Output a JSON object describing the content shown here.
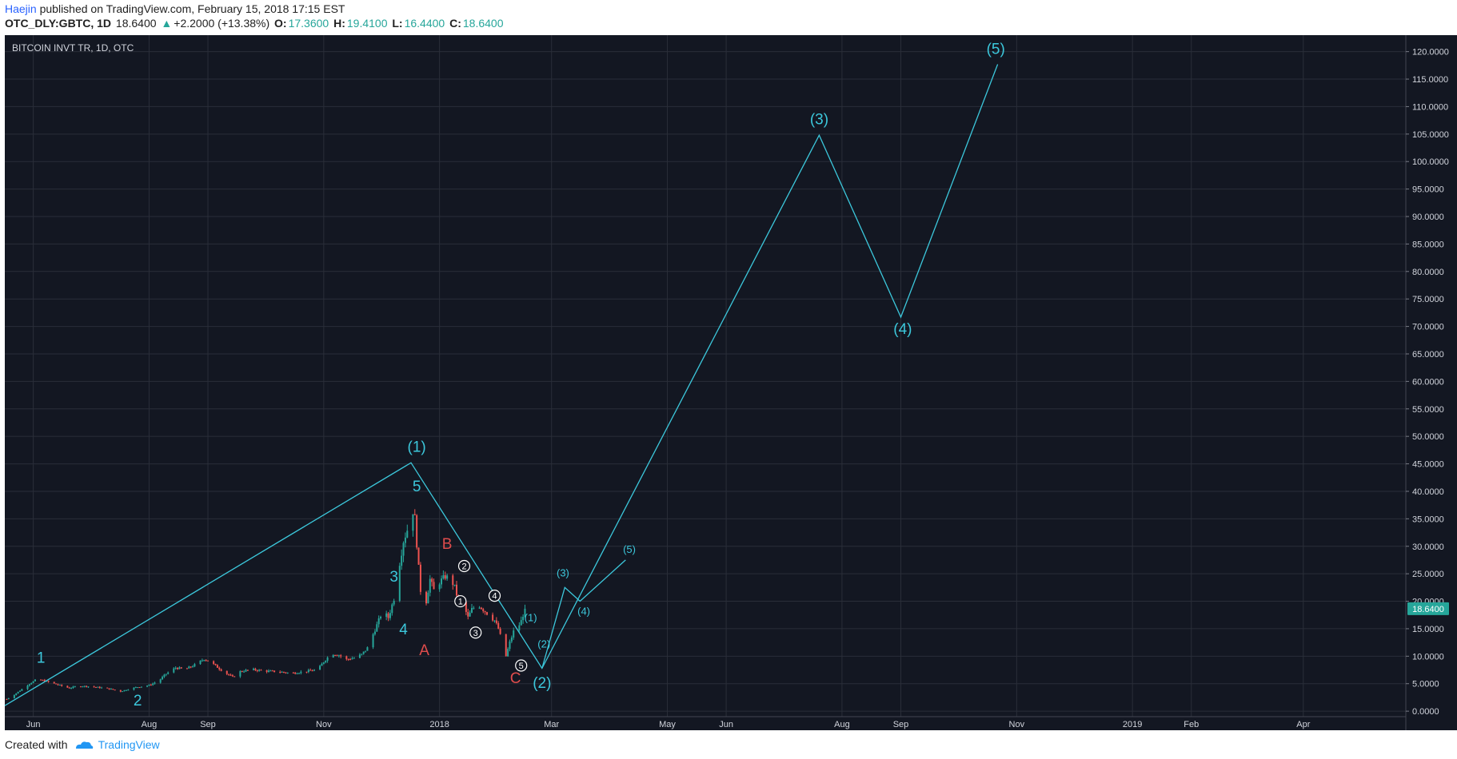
{
  "header": {
    "author": "Haejin",
    "published_text": "published on TradingView.com, February 15, 2018 17:15 EST"
  },
  "ohlc": {
    "symbol": "OTC_DLY:GBTC, 1D",
    "last": "18.6400",
    "arrow": "▲",
    "change": "+2.2000 (+13.38%)",
    "o_label": "O:",
    "o": "17.3600",
    "h_label": "H:",
    "h": "19.4100",
    "l_label": "L:",
    "l": "16.4400",
    "c_label": "C:",
    "c": "18.6400"
  },
  "legend_text": "BITCOIN INVT TR, 1D, OTC",
  "price_badge": "18.6400",
  "footer": {
    "created_with": "Created with",
    "brand": "TradingView"
  },
  "colors": {
    "background": "#131722",
    "grid": "#2a2e39",
    "wave": "#3cc8dc",
    "bull": "#26a69a",
    "bear": "#ef5350",
    "correction_label": "#e04c4c",
    "badge": "#26a69a"
  },
  "chart_data": {
    "type": "candlestick",
    "title": "BITCOIN INVT TR, 1D, OTC",
    "xlim": [
      "2017-05-17",
      "2019-05-25"
    ],
    "ylim": [
      -1,
      123
    ],
    "y_ticks": [
      "0.0000",
      "5.0000",
      "10.0000",
      "15.0000",
      "20.0000",
      "25.0000",
      "30.0000",
      "35.0000",
      "40.0000",
      "45.0000",
      "50.0000",
      "55.0000",
      "60.0000",
      "65.0000",
      "70.0000",
      "75.0000",
      "80.0000",
      "85.0000",
      "90.0000",
      "95.0000",
      "100.0000",
      "105.0000",
      "110.0000",
      "115.0000",
      "120.0000"
    ],
    "x_ticks": [
      {
        "label": "Jun",
        "date": "2017-06-01"
      },
      {
        "label": "Aug",
        "date": "2017-08-01"
      },
      {
        "label": "Sep",
        "date": "2017-09-01"
      },
      {
        "label": "Nov",
        "date": "2017-11-01"
      },
      {
        "label": "2018",
        "date": "2018-01-01"
      },
      {
        "label": "Mar",
        "date": "2018-03-01"
      },
      {
        "label": "May",
        "date": "2018-05-01"
      },
      {
        "label": "Jun",
        "date": "2018-06-01"
      },
      {
        "label": "Aug",
        "date": "2018-08-01"
      },
      {
        "label": "Sep",
        "date": "2018-09-01"
      },
      {
        "label": "Nov",
        "date": "2018-11-01"
      },
      {
        "label": "2019",
        "date": "2019-01-01"
      },
      {
        "label": "Feb",
        "date": "2019-02-01"
      },
      {
        "label": "Apr",
        "date": "2019-04-01"
      }
    ],
    "last_price": 18.64,
    "price_path": [
      [
        "2017-05-18",
        2.2
      ],
      [
        "2017-05-22",
        3.0
      ],
      [
        "2017-05-26",
        4.0
      ],
      [
        "2017-05-30",
        5.0
      ],
      [
        "2017-06-03",
        5.8
      ],
      [
        "2017-06-07",
        5.5
      ],
      [
        "2017-06-12",
        5.0
      ],
      [
        "2017-06-16",
        4.6
      ],
      [
        "2017-06-20",
        4.2
      ],
      [
        "2017-06-25",
        4.6
      ],
      [
        "2017-06-30",
        4.5
      ],
      [
        "2017-07-06",
        4.3
      ],
      [
        "2017-07-12",
        4.0
      ],
      [
        "2017-07-17",
        3.6
      ],
      [
        "2017-07-21",
        4.0
      ],
      [
        "2017-07-26",
        4.4
      ],
      [
        "2017-08-01",
        4.7
      ],
      [
        "2017-08-06",
        5.5
      ],
      [
        "2017-08-10",
        6.8
      ],
      [
        "2017-08-15",
        7.9
      ],
      [
        "2017-08-20",
        7.6
      ],
      [
        "2017-08-25",
        8.4
      ],
      [
        "2017-08-30",
        9.5
      ],
      [
        "2017-09-02",
        9.0
      ],
      [
        "2017-09-06",
        8.0
      ],
      [
        "2017-09-10",
        7.0
      ],
      [
        "2017-09-14",
        6.2
      ],
      [
        "2017-09-18",
        7.2
      ],
      [
        "2017-09-24",
        7.6
      ],
      [
        "2017-10-01",
        7.3
      ],
      [
        "2017-10-08",
        7.2
      ],
      [
        "2017-10-15",
        6.9
      ],
      [
        "2017-10-22",
        7.2
      ],
      [
        "2017-10-29",
        7.6
      ],
      [
        "2017-11-01",
        9.0
      ],
      [
        "2017-11-05",
        10.5
      ],
      [
        "2017-11-09",
        10.2
      ],
      [
        "2017-11-13",
        9.4
      ],
      [
        "2017-11-17",
        9.7
      ],
      [
        "2017-11-21",
        10.3
      ],
      [
        "2017-11-24",
        11.5
      ],
      [
        "2017-11-27",
        14.0
      ],
      [
        "2017-11-30",
        16.5
      ],
      [
        "2017-12-02",
        18.3
      ],
      [
        "2017-12-05",
        17.0
      ],
      [
        "2017-12-08",
        20.5
      ],
      [
        "2017-12-11",
        27.0
      ],
      [
        "2017-12-13",
        31.0
      ],
      [
        "2017-12-15",
        33.0
      ],
      [
        "2017-12-17",
        38.0
      ],
      [
        "2017-12-19",
        35.0
      ],
      [
        "2017-12-21",
        26.0
      ],
      [
        "2017-12-23",
        18.0
      ],
      [
        "2017-12-25",
        20.0
      ],
      [
        "2017-12-27",
        24.0
      ],
      [
        "2017-12-29",
        22.0
      ],
      [
        "2018-01-01",
        23.5
      ],
      [
        "2018-01-04",
        24.5
      ],
      [
        "2018-01-07",
        24.0
      ],
      [
        "2018-01-09",
        22.5
      ],
      [
        "2018-01-11",
        20.0
      ],
      [
        "2018-01-14",
        19.0
      ],
      [
        "2018-01-16",
        17.0
      ],
      [
        "2018-01-18",
        18.5
      ],
      [
        "2018-01-21",
        19.5
      ],
      [
        "2018-01-24",
        18.5
      ],
      [
        "2018-01-27",
        17.5
      ],
      [
        "2018-01-30",
        16.5
      ],
      [
        "2018-02-01",
        15.0
      ],
      [
        "2018-02-03",
        12.5
      ],
      [
        "2018-02-05",
        10.0
      ],
      [
        "2018-02-07",
        12.5
      ],
      [
        "2018-02-09",
        14.5
      ],
      [
        "2018-02-11",
        15.0
      ],
      [
        "2018-02-13",
        16.4
      ],
      [
        "2018-02-15",
        18.64
      ]
    ],
    "wave_lines": [
      {
        "name": "main",
        "points": [
          [
            "2017-05-17",
            1.0
          ],
          [
            "2017-12-17",
            45.2
          ],
          [
            "2018-02-24",
            7.8
          ],
          [
            "2018-07-20",
            104.8
          ],
          [
            "2018-09-01",
            71.7
          ],
          [
            "2018-10-22",
            117.7
          ]
        ]
      },
      {
        "name": "sub",
        "points": [
          [
            "2018-02-24",
            7.8
          ],
          [
            "2018-03-08",
            22.5
          ],
          [
            "2018-03-16",
            20.0
          ],
          [
            "2018-04-09",
            27.5
          ]
        ]
      }
    ],
    "annotations": [
      {
        "text": "1",
        "date": "2017-06-05",
        "price": 8.8,
        "color": "wave",
        "size": 19
      },
      {
        "text": "2",
        "date": "2017-07-26",
        "price": 1.0,
        "color": "wave",
        "size": 19
      },
      {
        "text": "3",
        "date": "2017-12-08",
        "price": 23.6,
        "color": "wave",
        "size": 19
      },
      {
        "text": "4",
        "date": "2017-12-13",
        "price": 14.0,
        "color": "wave",
        "size": 19
      },
      {
        "text": "5",
        "date": "2017-12-20",
        "price": 40.0,
        "color": "wave",
        "size": 19
      },
      {
        "text": "(1)",
        "date": "2017-12-20",
        "price": 47.2,
        "color": "wave",
        "size": 19
      },
      {
        "text": "A",
        "date": "2017-12-24",
        "price": 10.2,
        "color": "correction",
        "size": 19
      },
      {
        "text": "B",
        "date": "2018-01-05",
        "price": 29.5,
        "color": "correction",
        "size": 19
      },
      {
        "text": "C",
        "date": "2018-02-10",
        "price": 5.1,
        "color": "correction",
        "size": 19
      },
      {
        "text": "(2)",
        "date": "2018-02-24",
        "price": 4.2,
        "color": "wave",
        "size": 19
      },
      {
        "text": "(1)",
        "date": "2018-02-18",
        "price": 16.4,
        "color": "wave",
        "size": 13
      },
      {
        "text": "(2)",
        "date": "2018-02-25",
        "price": 11.6,
        "color": "wave",
        "size": 13
      },
      {
        "text": "(3)",
        "date": "2018-03-07",
        "price": 24.5,
        "color": "wave",
        "size": 13
      },
      {
        "text": "(4)",
        "date": "2018-03-18",
        "price": 17.5,
        "color": "wave",
        "size": 13
      },
      {
        "text": "(5)",
        "date": "2018-04-11",
        "price": 28.8,
        "color": "wave",
        "size": 13
      },
      {
        "text": "(3)",
        "date": "2018-07-20",
        "price": 106.8,
        "color": "wave",
        "size": 19
      },
      {
        "text": "(4)",
        "date": "2018-09-02",
        "price": 68.6,
        "color": "wave",
        "size": 19
      },
      {
        "text": "(5)",
        "date": "2018-10-21",
        "price": 119.6,
        "color": "wave",
        "size": 19
      }
    ],
    "circled_labels": [
      {
        "text": "1",
        "date": "2018-01-12",
        "price": 20.0
      },
      {
        "text": "2",
        "date": "2018-01-14",
        "price": 26.4
      },
      {
        "text": "3",
        "date": "2018-01-20",
        "price": 14.3
      },
      {
        "text": "4",
        "date": "2018-01-30",
        "price": 21.0
      },
      {
        "text": "5",
        "date": "2018-02-13",
        "price": 8.3
      }
    ],
    "grid": true,
    "legend": "top-left"
  }
}
